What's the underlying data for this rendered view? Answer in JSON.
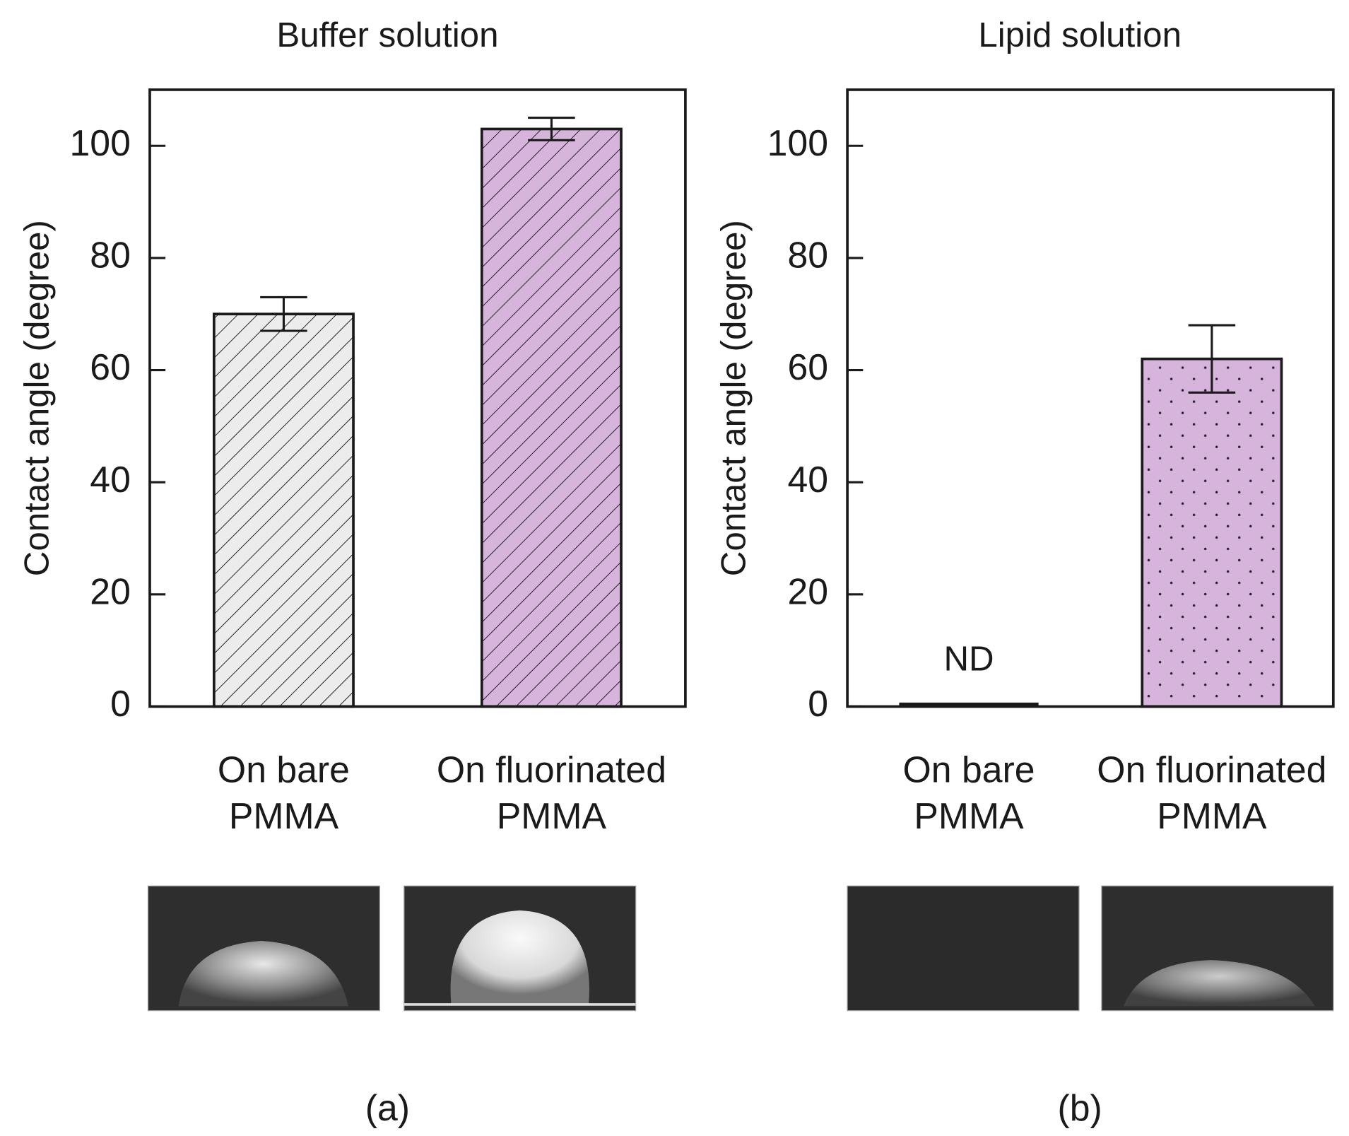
{
  "chart_data": [
    {
      "type": "bar",
      "title": "Buffer solution",
      "ylabel": "Contact angle (degree)",
      "categories": [
        "On bare\nPMMA",
        "On fluorinated\nPMMA"
      ],
      "values": [
        70,
        103
      ],
      "errors": [
        3,
        2
      ],
      "colors": [
        "#ececec",
        "#d6b4dc"
      ],
      "pattern": "hatch",
      "ylim": [
        0,
        110
      ],
      "yticks": [
        0,
        20,
        40,
        60,
        80,
        100
      ],
      "panel_label": "(a)"
    },
    {
      "type": "bar",
      "title": "Lipid solution",
      "ylabel": "Contact angle (degree)",
      "categories": [
        "On bare\nPMMA",
        "On fluorinated\nPMMA"
      ],
      "values": [
        null,
        62
      ],
      "errors": [
        null,
        6
      ],
      "colors": [
        "#ececec",
        "#d6b4dc"
      ],
      "pattern": "dots",
      "annotations": [
        "ND"
      ],
      "ylim": [
        0,
        110
      ],
      "yticks": [
        0,
        20,
        40,
        60,
        80,
        100
      ],
      "panel_label": "(b)"
    }
  ]
}
